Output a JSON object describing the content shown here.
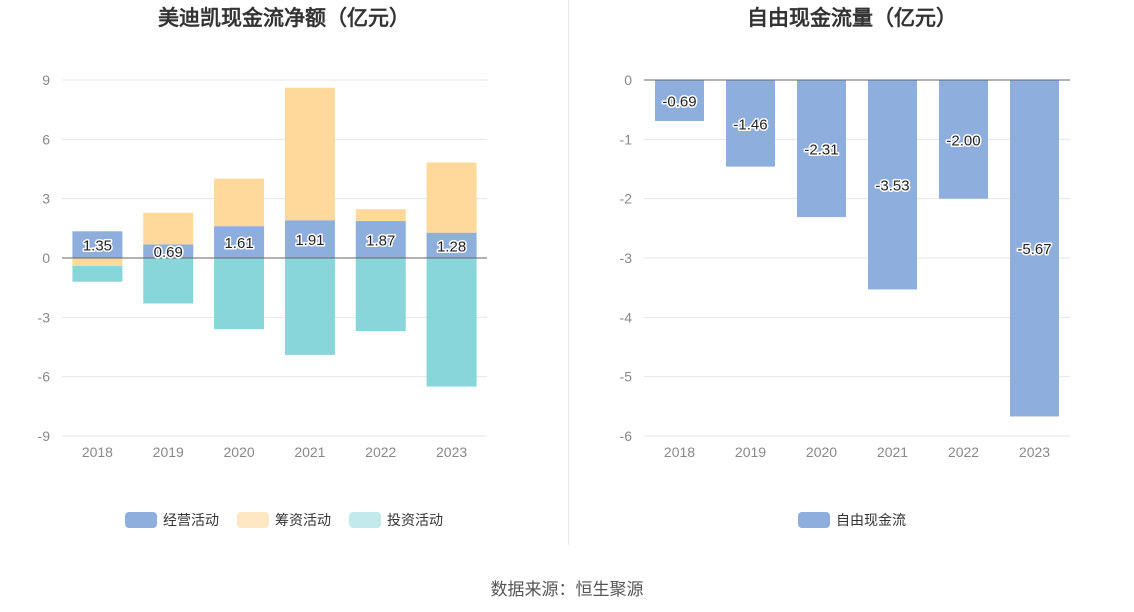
{
  "source_label": "数据来源：恒生聚源",
  "colors": {
    "operating": "#8eaedd",
    "financing": "#fed99b",
    "investing": "#88d5da",
    "fcf": "#8eaedd",
    "grid": "#e6e6e6",
    "zero_line": "#666666"
  },
  "chart_data": [
    {
      "type": "bar",
      "stacked": true,
      "title": "美迪凯现金流净额（亿元）",
      "categories": [
        "2018",
        "2019",
        "2020",
        "2021",
        "2022",
        "2023"
      ],
      "series": [
        {
          "name": "经营活动",
          "values": [
            1.35,
            0.69,
            1.61,
            1.91,
            1.87,
            1.28
          ]
        },
        {
          "name": "筹资活动",
          "values": [
            -0.4,
            1.6,
            2.4,
            6.7,
            0.6,
            3.55
          ]
        },
        {
          "name": "投资活动",
          "values": [
            -0.8,
            -2.3,
            -3.6,
            -4.9,
            -3.7,
            -6.5
          ]
        }
      ],
      "data_labels": [
        "1.35",
        "0.69",
        "1.61",
        "1.91",
        "1.87",
        "1.28"
      ],
      "yticks": [
        9,
        6,
        3,
        0,
        -3,
        -6,
        -9
      ],
      "ylim": [
        -9,
        9
      ],
      "grid": true,
      "legend_position": "bottom"
    },
    {
      "type": "bar",
      "title": "自由现金流量（亿元）",
      "categories": [
        "2018",
        "2019",
        "2020",
        "2021",
        "2022",
        "2023"
      ],
      "series": [
        {
          "name": "自由现金流",
          "values": [
            -0.69,
            -1.46,
            -2.31,
            -3.53,
            -2.0,
            -5.67
          ]
        }
      ],
      "data_labels": [
        "-0.69",
        "-1.46",
        "-2.31",
        "-3.53",
        "-2.00",
        "-5.67"
      ],
      "yticks": [
        0,
        -1,
        -2,
        -3,
        -4,
        -5,
        -6
      ],
      "ylim": [
        -6,
        0
      ],
      "grid": true,
      "legend_position": "bottom"
    }
  ]
}
